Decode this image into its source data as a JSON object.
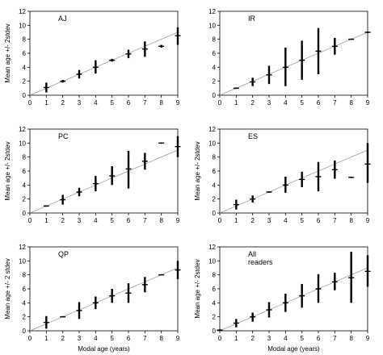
{
  "figure": {
    "background": "#ffffff",
    "ink_color": "#000000",
    "reference_line_color": "#999999"
  },
  "chart_data": [
    {
      "type": "errorbar",
      "title": "AJ",
      "xlabel": "",
      "ylabel": "Mean age +/- 2stdev",
      "xlim": [
        0,
        9
      ],
      "ylim": [
        0,
        12
      ],
      "xticks": [
        0,
        1,
        2,
        3,
        4,
        5,
        6,
        7,
        8,
        9
      ],
      "yticks": [
        0,
        2,
        4,
        6,
        8,
        10,
        12
      ],
      "reference_line": "y = x",
      "x": [
        1,
        2,
        3,
        4,
        5,
        6,
        7,
        8,
        9
      ],
      "mean": [
        1.1,
        2.0,
        3.0,
        4.0,
        5.0,
        5.9,
        6.6,
        7.0,
        8.5
      ],
      "lower": [
        0.4,
        1.8,
        2.4,
        3.1,
        4.8,
        5.3,
        5.5,
        6.8,
        7.2
      ],
      "upper": [
        1.8,
        2.2,
        3.6,
        5.0,
        5.2,
        6.5,
        7.7,
        7.2,
        9.7
      ]
    },
    {
      "type": "errorbar",
      "title": "IR",
      "xlabel": "",
      "ylabel": "",
      "xlim": [
        0,
        9
      ],
      "ylim": [
        0,
        12
      ],
      "xticks": [
        0,
        1,
        2,
        3,
        4,
        5,
        6,
        7,
        8,
        9
      ],
      "yticks": [
        0,
        2,
        4,
        6,
        8,
        10,
        12
      ],
      "reference_line": "y = x",
      "x": [
        1,
        2,
        3,
        4,
        5,
        6,
        7,
        8,
        9
      ],
      "mean": [
        1.0,
        1.9,
        2.9,
        4.0,
        5.0,
        6.3,
        7.0,
        8.0,
        9.0
      ],
      "lower": [
        0.9,
        1.3,
        1.6,
        1.3,
        2.2,
        3.0,
        5.8,
        7.9,
        8.9
      ],
      "upper": [
        1.1,
        2.5,
        4.2,
        6.8,
        7.8,
        9.6,
        8.2,
        8.1,
        9.1
      ]
    },
    {
      "type": "errorbar",
      "title": "PC",
      "xlabel": "",
      "ylabel": "Mean age +/- 2stdev",
      "xlim": [
        0,
        9
      ],
      "ylim": [
        0,
        12
      ],
      "xticks": [
        0,
        1,
        2,
        3,
        4,
        5,
        6,
        7,
        8,
        9
      ],
      "yticks": [
        0,
        2,
        4,
        6,
        8,
        10,
        12
      ],
      "reference_line": "y = x",
      "x": [
        1,
        2,
        3,
        4,
        5,
        6,
        7,
        8,
        9
      ],
      "mean": [
        1.0,
        1.9,
        3.0,
        4.2,
        5.3,
        6.3,
        7.4,
        10.0,
        9.5
      ],
      "lower": [
        0.9,
        1.2,
        2.4,
        3.1,
        4.0,
        3.5,
        6.2,
        9.9,
        8.0
      ],
      "upper": [
        1.1,
        2.6,
        3.6,
        5.3,
        6.7,
        8.9,
        8.6,
        10.1,
        11.0
      ]
    },
    {
      "type": "errorbar",
      "title": "ES",
      "xlabel": "",
      "ylabel": "Mean age +/- 2stdev",
      "xlim": [
        0,
        9
      ],
      "ylim": [
        0,
        12
      ],
      "xticks": [
        0,
        1,
        2,
        3,
        4,
        5,
        6,
        7,
        8,
        9
      ],
      "yticks": [
        0,
        2,
        4,
        6,
        8,
        10,
        12
      ],
      "reference_line": "y = x",
      "x": [
        1,
        2,
        3,
        4,
        5,
        6,
        7,
        8,
        9
      ],
      "mean": [
        1.2,
        2.0,
        3.0,
        4.0,
        4.8,
        5.2,
        6.2,
        5.1,
        7.0
      ],
      "lower": [
        0.5,
        1.5,
        2.9,
        2.9,
        3.7,
        3.1,
        4.9,
        5.0,
        4.3
      ],
      "upper": [
        1.9,
        2.5,
        3.1,
        5.2,
        5.9,
        7.3,
        7.5,
        5.2,
        10.0
      ]
    },
    {
      "type": "errorbar",
      "title": "QP",
      "xlabel": "Modal age (years)",
      "ylabel": "Mean age +/- 2 stdev",
      "xlim": [
        0,
        9
      ],
      "ylim": [
        0,
        12
      ],
      "xticks": [
        0,
        1,
        2,
        3,
        4,
        5,
        6,
        7,
        8,
        9
      ],
      "yticks": [
        0,
        2,
        4,
        6,
        8,
        10,
        12
      ],
      "reference_line": "y = x",
      "x": [
        1,
        2,
        3,
        4,
        5,
        6,
        7,
        8,
        9
      ],
      "mean": [
        1.2,
        2.0,
        2.9,
        4.0,
        5.0,
        5.4,
        6.6,
        8.0,
        8.7
      ],
      "lower": [
        0.3,
        1.9,
        1.7,
        3.1,
        4.0,
        4.0,
        5.5,
        7.9,
        7.4
      ],
      "upper": [
        2.1,
        2.1,
        4.1,
        4.9,
        6.0,
        6.8,
        7.7,
        8.1,
        10.0
      ]
    },
    {
      "type": "errorbar",
      "title": "All readers",
      "title_lines": [
        "All",
        "readers"
      ],
      "xlabel": "Modal age (years)",
      "ylabel": "Mean age +/- 2stdev",
      "xlim": [
        0,
        9
      ],
      "ylim": [
        0,
        12
      ],
      "xticks": [
        0,
        1,
        2,
        3,
        4,
        5,
        6,
        7,
        8,
        9
      ],
      "yticks": [
        0,
        2,
        4,
        6,
        8,
        10,
        12
      ],
      "reference_line": "y = x",
      "x": [
        0,
        1,
        2,
        3,
        4,
        5,
        6,
        7,
        8,
        9
      ],
      "mean": [
        0.1,
        1.1,
        2.0,
        3.0,
        4.0,
        5.0,
        6.0,
        7.0,
        7.6,
        8.5
      ],
      "lower": [
        0.0,
        0.5,
        1.3,
        1.9,
        2.7,
        3.3,
        4.0,
        5.8,
        4.0,
        6.3
      ],
      "upper": [
        0.2,
        1.7,
        2.6,
        4.1,
        5.3,
        6.7,
        8.1,
        8.3,
        11.3,
        10.8
      ]
    }
  ]
}
